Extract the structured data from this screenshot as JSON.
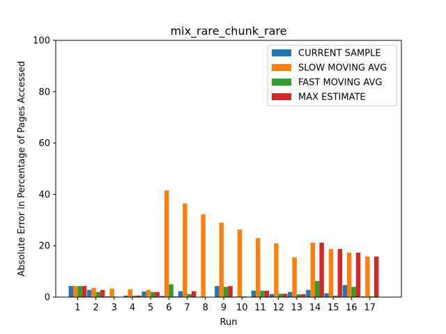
{
  "chart_data": {
    "type": "bar",
    "title": "mix_rare_chunk_rare",
    "xlabel": "Run",
    "ylabel": "Absolute Error in Percentage of Pages Accessed",
    "ylim": [
      0,
      100
    ],
    "yticks": [
      0,
      20,
      40,
      60,
      80,
      100
    ],
    "categories": [
      "1",
      "2",
      "3",
      "4",
      "5",
      "6",
      "7",
      "8",
      "9",
      "10",
      "11",
      "12",
      "13",
      "14",
      "15",
      "16",
      "17"
    ],
    "legend_position": "top-right",
    "grid": false,
    "series": [
      {
        "name": "CURRENT SAMPLE",
        "color": "#1f77b4",
        "values": [
          4.3,
          2.8,
          0.3,
          0.6,
          2.2,
          0.5,
          2.3,
          0,
          4.3,
          0.2,
          2.5,
          1.2,
          2.0,
          2.8,
          1.5,
          4.7,
          0.3
        ]
      },
      {
        "name": "SLOW MOVING AVG",
        "color": "#ff7f0e",
        "values": [
          4.3,
          3.6,
          3.3,
          3.1,
          2.8,
          41.5,
          36.5,
          32.2,
          29.0,
          26.3,
          23.0,
          20.9,
          15.5,
          21.2,
          18.7,
          17.3,
          15.8
        ]
      },
      {
        "name": "FAST MOVING AVG",
        "color": "#2ca02c",
        "values": [
          4.3,
          2.0,
          0.2,
          0.6,
          2.0,
          5.0,
          1.2,
          0,
          4.0,
          0.3,
          2.5,
          1.3,
          1.1,
          6.3,
          0.6,
          4.0,
          0.3
        ]
      },
      {
        "name": "MAX ESTIMATE",
        "color": "#d62728",
        "values": [
          4.3,
          2.8,
          0,
          0.6,
          2.0,
          0.3,
          2.3,
          0,
          4.3,
          0,
          2.5,
          1.3,
          1.1,
          21.2,
          18.7,
          17.3,
          15.8
        ]
      }
    ]
  }
}
